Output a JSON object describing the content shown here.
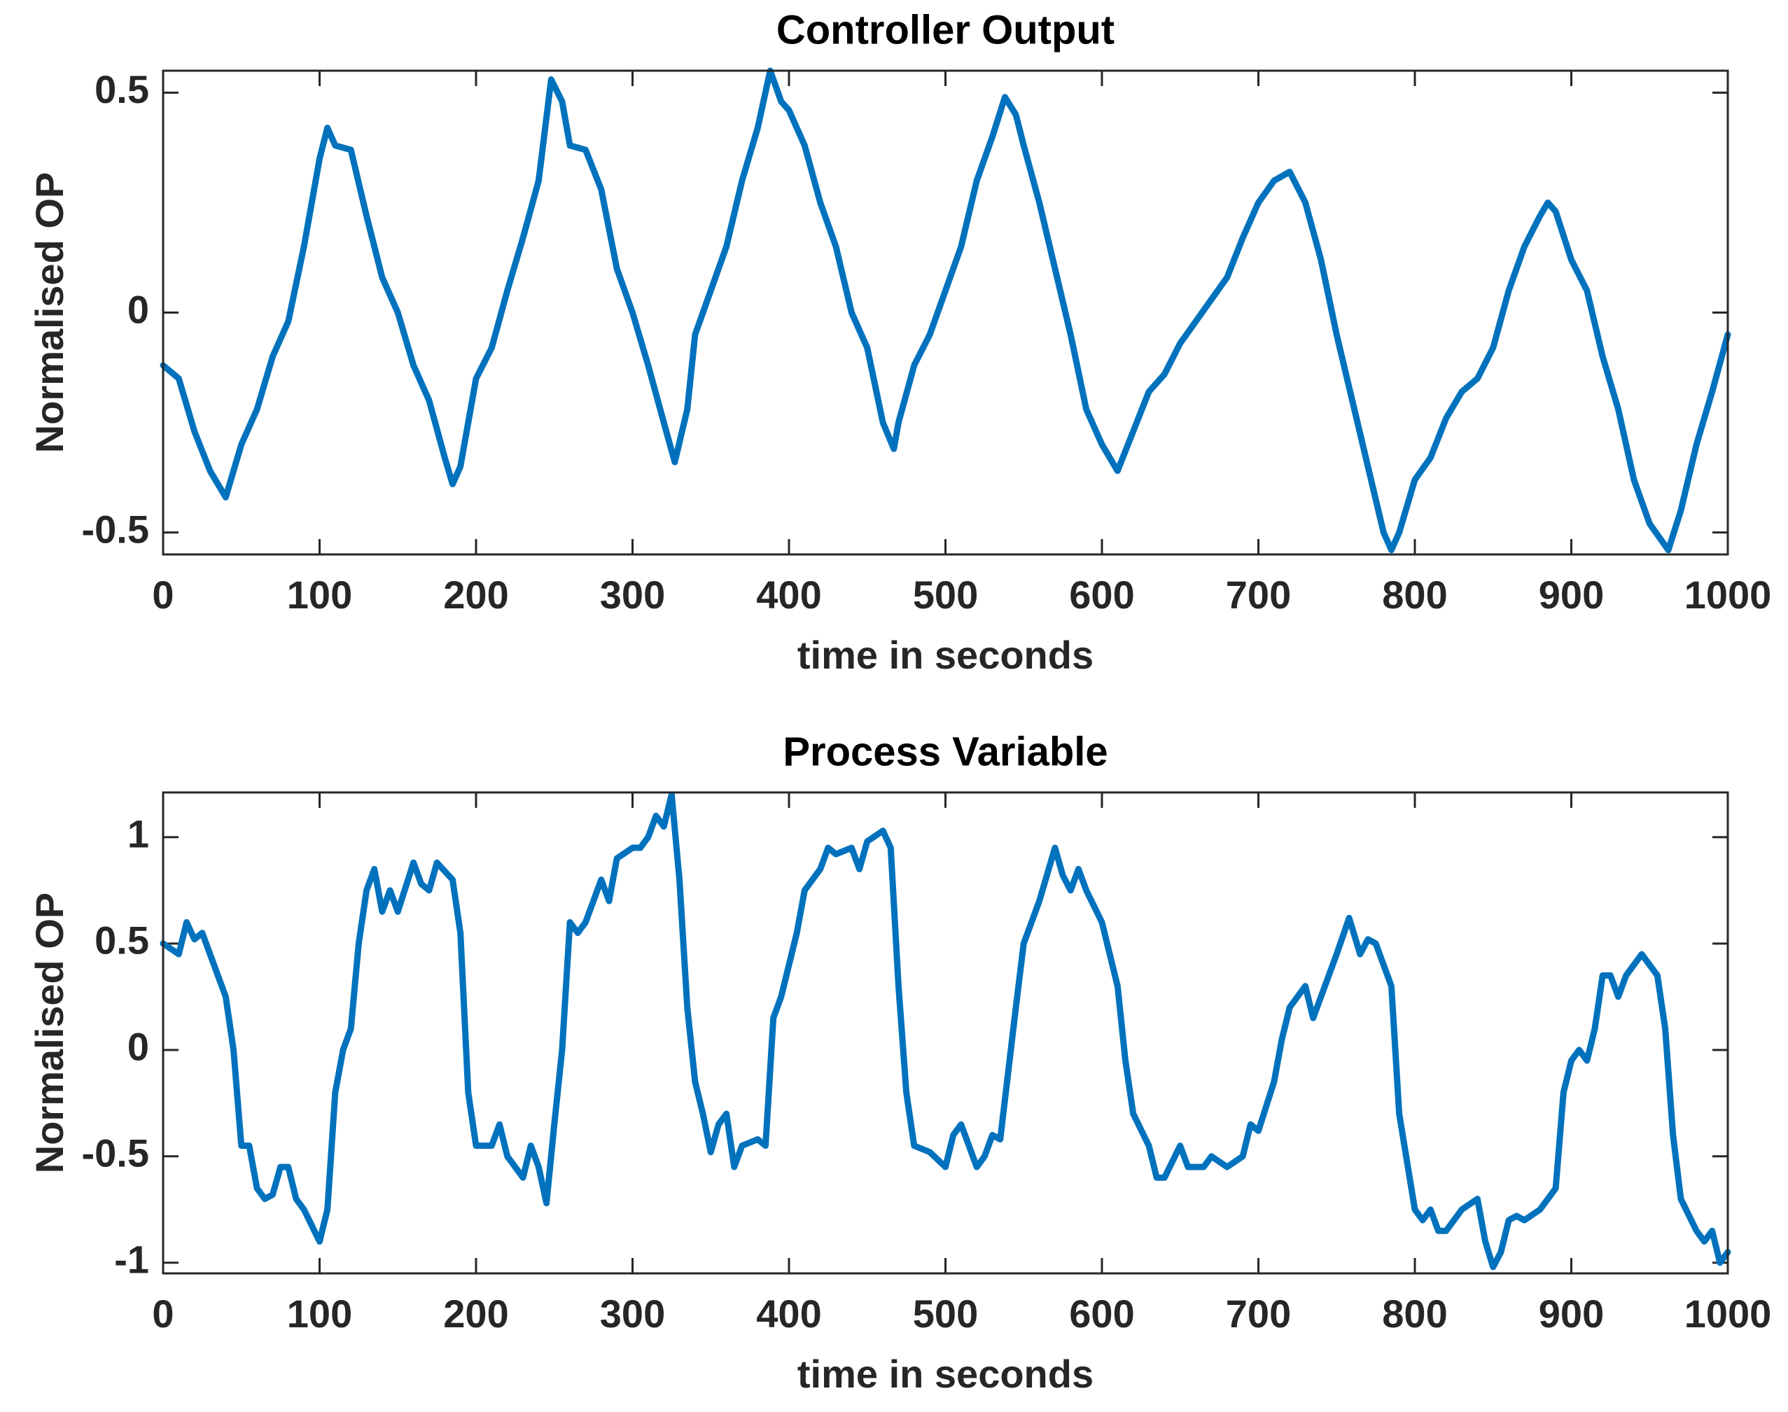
{
  "chart_data": [
    {
      "type": "line",
      "title": "Controller Output",
      "xlabel": "time in seconds",
      "ylabel": "Normalised OP",
      "x": [
        0,
        10,
        20,
        30,
        40,
        50,
        60,
        70,
        80,
        90,
        100,
        105,
        110,
        120,
        130,
        140,
        150,
        160,
        170,
        180,
        185,
        190,
        200,
        210,
        220,
        230,
        240,
        248,
        255,
        260,
        270,
        280,
        290,
        300,
        310,
        320,
        327,
        335,
        340,
        350,
        360,
        370,
        380,
        388,
        395,
        400,
        410,
        420,
        430,
        440,
        450,
        460,
        467,
        470,
        480,
        490,
        500,
        510,
        520,
        530,
        538,
        545,
        550,
        560,
        570,
        580,
        590,
        600,
        610,
        620,
        630,
        640,
        650,
        660,
        670,
        680,
        690,
        700,
        710,
        720,
        730,
        740,
        750,
        760,
        770,
        780,
        785,
        790,
        800,
        810,
        820,
        830,
        840,
        850,
        860,
        870,
        880,
        885,
        890,
        900,
        910,
        920,
        930,
        940,
        950,
        962,
        970,
        980,
        990,
        1000
      ],
      "series": [
        {
          "color": "#0072bd",
          "values": [
            -0.12,
            -0.15,
            -0.27,
            -0.36,
            -0.42,
            -0.3,
            -0.22,
            -0.1,
            -0.02,
            0.15,
            0.35,
            0.42,
            0.38,
            0.37,
            0.22,
            0.08,
            0.0,
            -0.12,
            -0.2,
            -0.33,
            -0.39,
            -0.35,
            -0.15,
            -0.08,
            0.05,
            0.17,
            0.3,
            0.53,
            0.48,
            0.38,
            0.37,
            0.28,
            0.1,
            0.0,
            -0.12,
            -0.25,
            -0.34,
            -0.22,
            -0.05,
            0.05,
            0.15,
            0.3,
            0.42,
            0.55,
            0.48,
            0.46,
            0.38,
            0.25,
            0.15,
            0.0,
            -0.08,
            -0.25,
            -0.31,
            -0.25,
            -0.12,
            -0.05,
            0.05,
            0.15,
            0.3,
            0.4,
            0.49,
            0.45,
            0.38,
            0.25,
            0.1,
            -0.05,
            -0.22,
            -0.3,
            -0.36,
            -0.27,
            -0.18,
            -0.14,
            -0.07,
            -0.02,
            0.03,
            0.08,
            0.17,
            0.25,
            0.3,
            0.32,
            0.25,
            0.12,
            -0.05,
            -0.2,
            -0.35,
            -0.5,
            -0.54,
            -0.5,
            -0.38,
            -0.33,
            -0.24,
            -0.18,
            -0.15,
            -0.08,
            0.05,
            0.15,
            0.22,
            0.25,
            0.23,
            0.12,
            0.05,
            -0.1,
            -0.22,
            -0.38,
            -0.48,
            -0.54,
            -0.45,
            -0.3,
            -0.18,
            -0.05
          ]
        }
      ],
      "xlim": [
        0,
        1000
      ],
      "xticks": [
        0,
        100,
        200,
        300,
        400,
        500,
        600,
        700,
        800,
        900,
        1000
      ],
      "ylim": [
        -0.55,
        0.55
      ],
      "yticks": [
        -0.5,
        0,
        0.5
      ]
    },
    {
      "type": "line",
      "title": "Process Variable",
      "xlabel": "time in seconds",
      "ylabel": "Normalised OP",
      "x": [
        0,
        10,
        15,
        20,
        25,
        30,
        35,
        40,
        45,
        50,
        55,
        60,
        65,
        70,
        75,
        80,
        85,
        90,
        100,
        105,
        110,
        115,
        120,
        125,
        130,
        135,
        140,
        145,
        150,
        160,
        165,
        170,
        175,
        185,
        190,
        195,
        200,
        210,
        215,
        220,
        230,
        235,
        240,
        245,
        250,
        255,
        260,
        265,
        270,
        280,
        285,
        290,
        300,
        305,
        310,
        315,
        320,
        325,
        330,
        335,
        340,
        345,
        350,
        355,
        360,
        365,
        370,
        380,
        385,
        390,
        395,
        400,
        405,
        410,
        420,
        425,
        430,
        440,
        445,
        450,
        460,
        465,
        470,
        475,
        480,
        490,
        500,
        505,
        510,
        520,
        525,
        530,
        535,
        545,
        550,
        560,
        570,
        575,
        580,
        585,
        590,
        600,
        605,
        610,
        615,
        620,
        630,
        635,
        640,
        650,
        655,
        665,
        670,
        680,
        690,
        695,
        700,
        710,
        715,
        720,
        730,
        735,
        740,
        750,
        758,
        765,
        770,
        775,
        785,
        790,
        800,
        805,
        810,
        815,
        820,
        830,
        840,
        845,
        850,
        855,
        860,
        865,
        870,
        880,
        890,
        895,
        900,
        905,
        910,
        915,
        920,
        925,
        930,
        935,
        945,
        955,
        960,
        965,
        970,
        980,
        985,
        990,
        995,
        1000
      ],
      "series": [
        {
          "color": "#0072bd",
          "values": [
            0.5,
            0.45,
            0.6,
            0.52,
            0.55,
            0.45,
            0.35,
            0.25,
            0.0,
            -0.45,
            -0.45,
            -0.65,
            -0.7,
            -0.68,
            -0.55,
            -0.55,
            -0.7,
            -0.75,
            -0.9,
            -0.75,
            -0.2,
            0.0,
            0.1,
            0.5,
            0.75,
            0.85,
            0.65,
            0.75,
            0.65,
            0.88,
            0.78,
            0.75,
            0.88,
            0.8,
            0.55,
            -0.2,
            -0.45,
            -0.45,
            -0.35,
            -0.5,
            -0.6,
            -0.45,
            -0.55,
            -0.72,
            -0.35,
            0.0,
            0.6,
            0.55,
            0.6,
            0.8,
            0.7,
            0.9,
            0.95,
            0.95,
            1.0,
            1.1,
            1.05,
            1.2,
            0.8,
            0.2,
            -0.15,
            -0.3,
            -0.48,
            -0.35,
            -0.3,
            -0.55,
            -0.45,
            -0.42,
            -0.45,
            0.15,
            0.25,
            0.4,
            0.55,
            0.75,
            0.85,
            0.95,
            0.92,
            0.95,
            0.85,
            0.98,
            1.03,
            0.95,
            0.3,
            -0.2,
            -0.45,
            -0.48,
            -0.55,
            -0.4,
            -0.35,
            -0.55,
            -0.5,
            -0.4,
            -0.42,
            0.2,
            0.5,
            0.7,
            0.95,
            0.82,
            0.75,
            0.85,
            0.75,
            0.6,
            0.45,
            0.3,
            -0.05,
            -0.3,
            -0.45,
            -0.6,
            -0.6,
            -0.45,
            -0.55,
            -0.55,
            -0.5,
            -0.55,
            -0.5,
            -0.35,
            -0.38,
            -0.15,
            0.05,
            0.2,
            0.3,
            0.15,
            0.25,
            0.45,
            0.62,
            0.45,
            0.52,
            0.5,
            0.3,
            -0.3,
            -0.75,
            -0.8,
            -0.75,
            -0.85,
            -0.85,
            -0.75,
            -0.7,
            -0.9,
            -1.02,
            -0.95,
            -0.8,
            -0.78,
            -0.8,
            -0.75,
            -0.65,
            -0.2,
            -0.05,
            0.0,
            -0.05,
            0.1,
            0.35,
            0.35,
            0.25,
            0.35,
            0.45,
            0.35,
            0.1,
            -0.4,
            -0.7,
            -0.85,
            -0.9,
            -0.85,
            -1.0,
            -0.95
          ]
        }
      ],
      "xlim": [
        0,
        1000
      ],
      "xticks": [
        0,
        100,
        200,
        300,
        400,
        500,
        600,
        700,
        800,
        900,
        1000
      ],
      "ylim": [
        -1.05,
        1.21
      ],
      "yticks": [
        -1,
        -0.5,
        0,
        0.5,
        1
      ]
    }
  ]
}
